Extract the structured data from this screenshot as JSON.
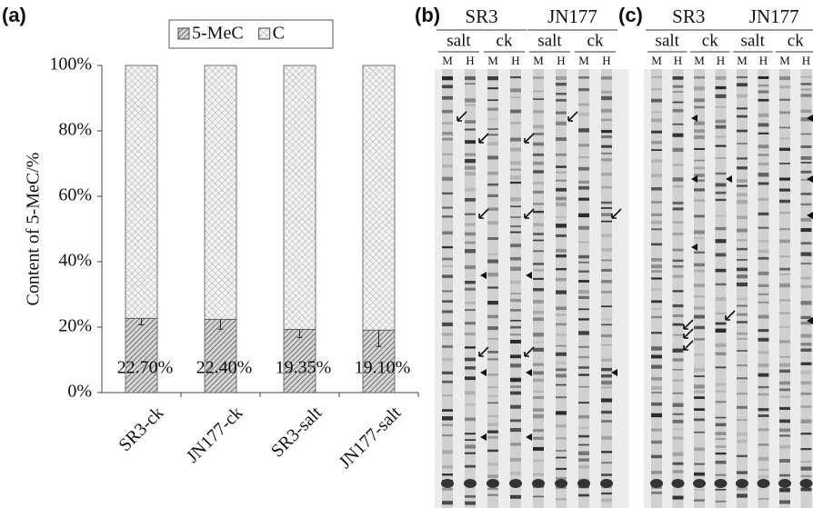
{
  "chart_data": {
    "type": "stacked_bar",
    "panel_label": "(a)",
    "y_label": "Content of 5-MeC/%",
    "categories": [
      "SR3-ck",
      "JN177-ck",
      "SR3-salt",
      "JN177-salt"
    ],
    "series": [
      {
        "name": "5-MeC",
        "color": "#9a9a9a",
        "values": [
          22.7,
          22.4,
          19.35,
          19.1
        ],
        "value_labels": [
          "22.70%",
          "22.40%",
          "19.35%",
          "19.10%"
        ],
        "errors": [
          2,
          3,
          2.5,
          5
        ]
      },
      {
        "name": "C",
        "color": "#d8d8d8",
        "values": [
          77.3,
          77.6,
          80.65,
          80.9
        ]
      }
    ],
    "ylim": [
      0,
      100
    ],
    "yticks": [
      {
        "value": 0,
        "label": "0%"
      },
      {
        "value": 20,
        "label": "20%"
      },
      {
        "value": 40,
        "label": "40%"
      },
      {
        "value": 60,
        "label": "60%"
      },
      {
        "value": 80,
        "label": "80%"
      },
      {
        "value": 100,
        "label": "100%"
      }
    ],
    "legend": "top"
  },
  "gels": [
    {
      "label": "(b)",
      "groups": [
        {
          "name": "SR3",
          "treatments": [
            {
              "name": "salt",
              "lanes": [
                "M",
                "H"
              ]
            },
            {
              "name": "ck",
              "lanes": [
                "M",
                "H"
              ]
            }
          ]
        },
        {
          "name": "JN177",
          "treatments": [
            {
              "name": "salt",
              "lanes": [
                "M",
                "H"
              ]
            },
            {
              "name": "ck",
              "lanes": [
                "M",
                "H"
              ]
            }
          ]
        }
      ]
    },
    {
      "label": "(c)",
      "groups": [
        {
          "name": "SR3",
          "treatments": [
            {
              "name": "salt",
              "lanes": [
                "M",
                "H"
              ]
            },
            {
              "name": "ck",
              "lanes": [
                "M",
                "H"
              ]
            }
          ]
        },
        {
          "name": "JN177",
          "treatments": [
            {
              "name": "salt",
              "lanes": [
                "M",
                "H"
              ]
            },
            {
              "name": "ck",
              "lanes": [
                "M",
                "H"
              ]
            }
          ]
        }
      ]
    }
  ]
}
